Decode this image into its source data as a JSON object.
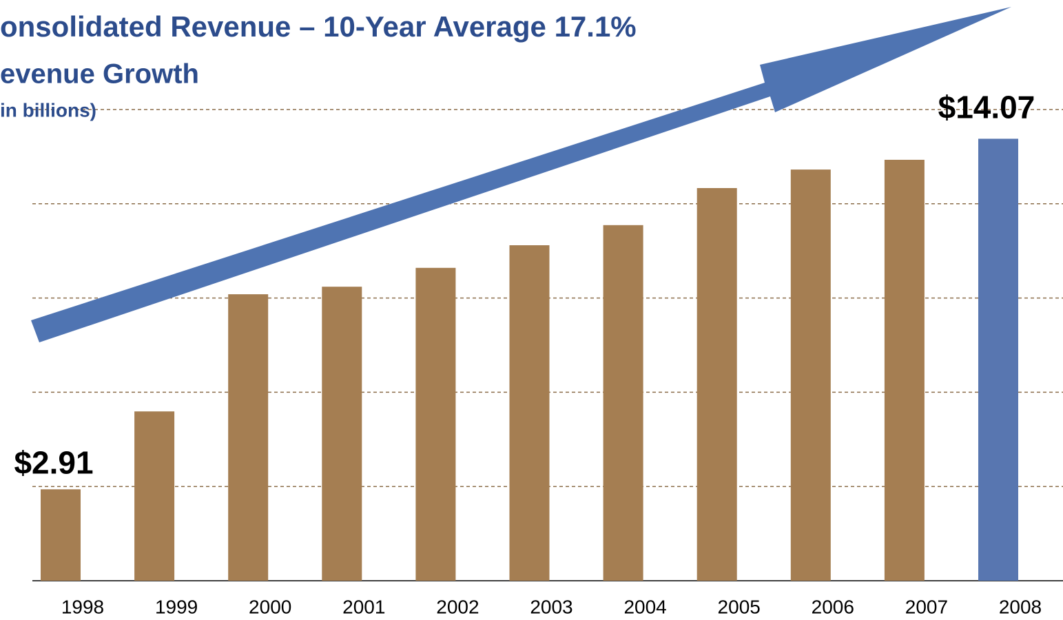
{
  "chart_data": {
    "type": "bar",
    "title": "onsolidated Revenue – 10-Year Average 17.1%",
    "subtitle": "evenue Growth",
    "unit_label": "in billions)",
    "categories": [
      "1998",
      "1999",
      "2000",
      "2001",
      "2002",
      "2003",
      "2004",
      "2005",
      "2006",
      "2007",
      "2008"
    ],
    "values": [
      2.91,
      5.39,
      9.12,
      9.36,
      9.96,
      10.68,
      11.32,
      12.5,
      13.09,
      13.4,
      14.07
    ],
    "value_labels": [
      "$2.91",
      null,
      null,
      null,
      null,
      null,
      null,
      null,
      null,
      null,
      "$14.07"
    ],
    "colors": [
      "#a57e52",
      "#a57e52",
      "#a57e52",
      "#a57e52",
      "#a57e52",
      "#a57e52",
      "#a57e52",
      "#a57e52",
      "#a57e52",
      "#a57e52",
      "#5876b0"
    ],
    "ylim": [
      0,
      15
    ],
    "gridlines": [
      3,
      6,
      9,
      12,
      15
    ],
    "grid": true
  }
}
